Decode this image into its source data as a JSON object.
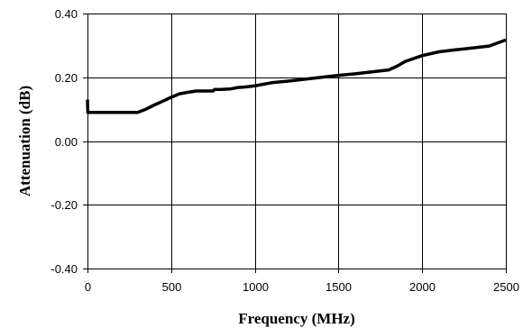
{
  "chart_data": {
    "type": "line",
    "xlabel": "Frequency (MHz)",
    "ylabel": "Attenuation (dB)",
    "xlim": [
      0,
      2500
    ],
    "ylim": [
      -0.4,
      0.4
    ],
    "x_ticks": [
      0,
      500,
      1000,
      1500,
      2000,
      2500
    ],
    "x_tick_labels": [
      "0",
      "500",
      "1000",
      "1500",
      "2000",
      "2500"
    ],
    "y_ticks": [
      0.4,
      0.2,
      0.0,
      -0.2,
      -0.4
    ],
    "y_tick_labels": [
      "0.40",
      "0.20",
      "0.00",
      "-0.20",
      "-0.40"
    ],
    "grid": true,
    "legend": "none",
    "series_color": "#000000",
    "series": [
      {
        "x": [
          0,
          2,
          5,
          100,
          200,
          300,
          350,
          400,
          450,
          500,
          550,
          600,
          650,
          700,
          750,
          760,
          800,
          850,
          900,
          950,
          1000,
          1050,
          1100,
          1200,
          1300,
          1400,
          1500,
          1600,
          1700,
          1800,
          1850,
          1900,
          2000,
          2100,
          2200,
          2300,
          2400,
          2500
        ],
        "y": [
          0.13,
          0.09,
          0.09,
          0.09,
          0.09,
          0.09,
          0.1,
          0.113,
          0.125,
          0.137,
          0.148,
          0.153,
          0.157,
          0.157,
          0.157,
          0.162,
          0.162,
          0.163,
          0.168,
          0.17,
          0.173,
          0.178,
          0.183,
          0.188,
          0.194,
          0.2,
          0.206,
          0.211,
          0.217,
          0.223,
          0.235,
          0.25,
          0.268,
          0.28,
          0.286,
          0.292,
          0.298,
          0.317
        ]
      }
    ]
  }
}
